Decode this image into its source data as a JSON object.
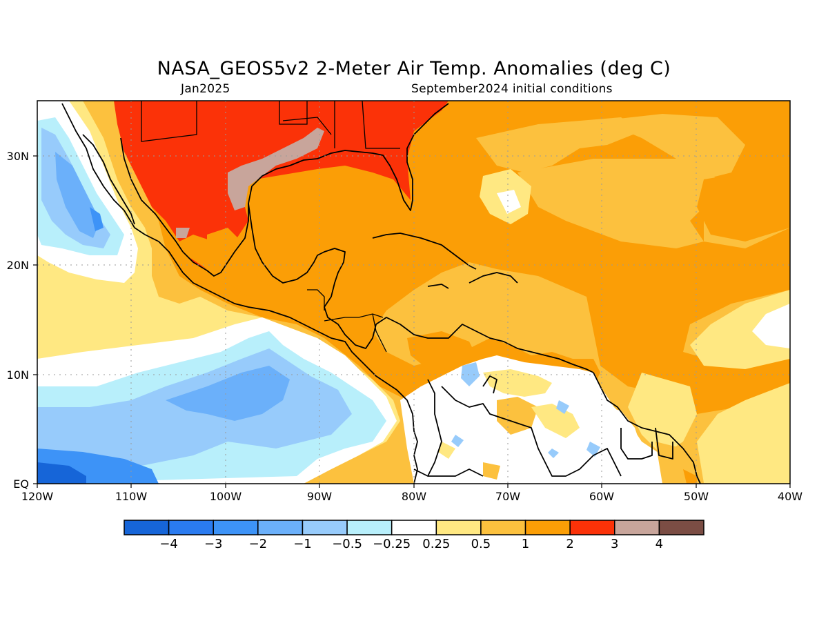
{
  "title": "NASA_GEOS5v2 2-Meter Air Temp. Anomalies (deg C)",
  "subtitle_left": "Jan2025",
  "subtitle_right": "September2024 initial conditions",
  "map": {
    "lon_range": [
      -120,
      -40
    ],
    "lat_range": [
      0,
      35
    ],
    "x_ticks": [
      "120W",
      "110W",
      "100W",
      "90W",
      "80W",
      "70W",
      "60W",
      "50W",
      "40W"
    ],
    "y_ticks": [
      "EQ",
      "10N",
      "20N",
      "30N"
    ],
    "grid": "dotted"
  },
  "colorbar": {
    "colors": [
      "#1665d8",
      "#2a7bf0",
      "#3d93f7",
      "#6bb0fa",
      "#97cbfb",
      "#b8effb",
      "#ffffff",
      "#ffe882",
      "#fcc13e",
      "#fb9e06",
      "#fb3208",
      "#c8a59b",
      "#7b4d44"
    ],
    "labels": [
      "-4",
      "-3",
      "-2",
      "-1",
      "-0.5",
      "-0.25",
      "0.25",
      "0.5",
      "1",
      "2",
      "3",
      "4"
    ]
  }
}
